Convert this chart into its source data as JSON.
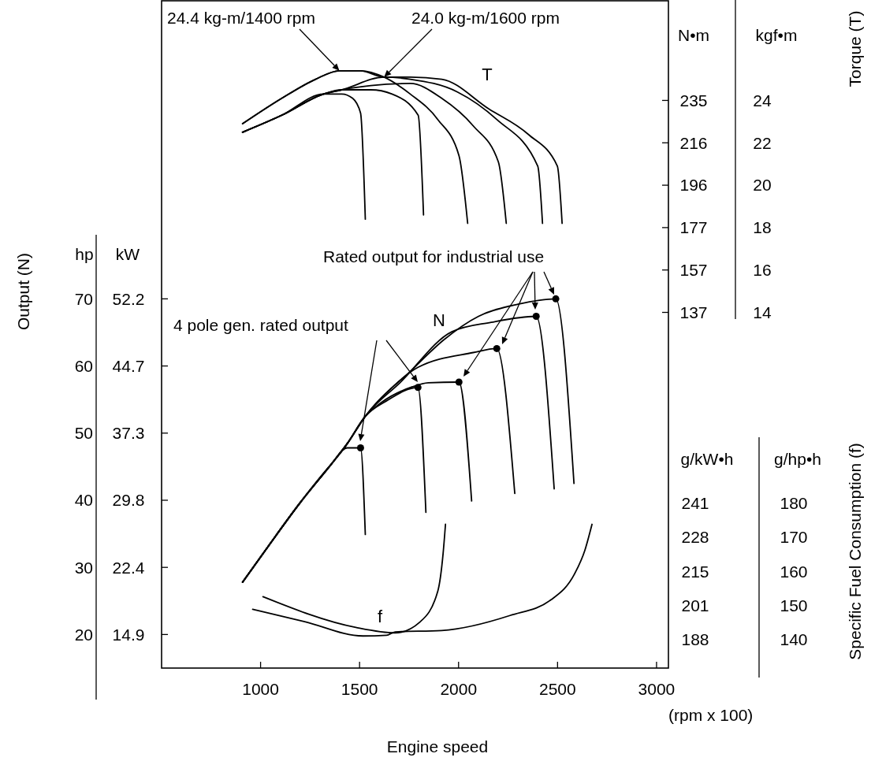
{
  "chart_data": {
    "type": "line",
    "xlabel": "Engine speed",
    "ylabel": "Torque (T)",
    "y2label": "Output (N)",
    "y3label": "Specific Fuel Consumption (f)",
    "xlim": [
      500,
      3060
    ],
    "xticks": [
      1000,
      1500,
      2000,
      2500,
      3000
    ],
    "ylim": [
      -2.78,
      28.7
    ],
    "yticks": [
      24,
      22,
      20,
      18,
      16,
      14
    ],
    "y2lim": [
      15,
      114.4
    ],
    "y2ticks": [
      70,
      60,
      50,
      40,
      30,
      20
    ],
    "y3lim": [
      131.7,
      327.1
    ],
    "y3ticks": [
      180,
      170,
      160,
      150,
      140
    ],
    "series": [
      {
        "color": "#000000",
        "x": [
          909,
          1107,
          1318,
          1410,
          1465,
          1505,
          1529
        ],
        "values": [
          22.5,
          23.3,
          24.3,
          24.3,
          24.1,
          23.4,
          18.4
        ]
      },
      {
        "color": "#000000",
        "x": [
          909,
          1107,
          1318,
          1410,
          1557,
          1664,
          1796,
          1823
        ],
        "values": [
          22.5,
          23.3,
          24.3,
          24.5,
          24.5,
          24.3,
          23.3,
          18.6
        ]
      },
      {
        "color": "#000000",
        "x": [
          909,
          1107,
          1278,
          1398,
          1505,
          1624,
          1756,
          1895,
          2002,
          2046
        ],
        "values": [
          22.9,
          24.1,
          25.0,
          25.4,
          25.4,
          25.1,
          24.3,
          23.1,
          21.4,
          18.2
        ]
      },
      {
        "color": "#000000",
        "x": [
          909,
          1107,
          1318,
          1410,
          1557,
          1756,
          1915,
          2074,
          2201,
          2241
        ],
        "values": [
          22.5,
          23.3,
          24.3,
          24.5,
          24.7,
          24.8,
          24.1,
          22.8,
          21.1,
          18.2
        ]
      },
      {
        "color": "#000000",
        "x": [
          909,
          1107,
          1318,
          1410,
          1624,
          1756,
          1994,
          2193,
          2400,
          2424
        ],
        "values": [
          22.5,
          23.3,
          24.3,
          24.5,
          25.1,
          25.0,
          24.4,
          23.1,
          20.9,
          18.2
        ]
      },
      {
        "name": "T",
        "color": "#000000",
        "x": [
          909,
          1107,
          1278,
          1398,
          1505,
          1624,
          1756,
          1915,
          2153,
          2352,
          2499,
          2523
        ],
        "values": [
          22.9,
          24.1,
          25.0,
          25.4,
          25.4,
          25.1,
          25.1,
          25.0,
          23.6,
          22.4,
          20.9,
          18.2
        ]
      },
      {
        "axis": "y2",
        "color": "#000000",
        "x": [
          909,
          1040,
          1199,
          1358,
          1437,
          1505,
          1529
        ],
        "values": [
          27.8,
          33.2,
          39.6,
          45.4,
          47.8,
          47.8,
          34.9
        ]
      },
      {
        "axis": "y2",
        "color": "#000000",
        "x": [
          909,
          1040,
          1199,
          1358,
          1437,
          1529,
          1636,
          1795,
          1835
        ],
        "values": [
          27.8,
          33.2,
          39.6,
          45.4,
          48.4,
          52.5,
          54.8,
          56.8,
          38.2
        ]
      },
      {
        "axis": "y2",
        "color": "#000000",
        "x": [
          909,
          1040,
          1199,
          1358,
          1437,
          1529,
          1585,
          1767,
          1847,
          2002,
          2066
        ],
        "values": [
          27.8,
          33.2,
          39.6,
          45.4,
          48.4,
          52.5,
          54.0,
          56.9,
          57.5,
          57.6,
          39.9
        ]
      },
      {
        "axis": "y2",
        "color": "#000000",
        "x": [
          909,
          1040,
          1199,
          1358,
          1437,
          1529,
          1636,
          1795,
          2074,
          2193,
          2284
        ],
        "values": [
          27.8,
          33.2,
          39.6,
          45.4,
          48.4,
          52.5,
          56.0,
          59.8,
          62.0,
          62.6,
          41.0
        ]
      },
      {
        "axis": "y2",
        "color": "#000000",
        "x": [
          909,
          1040,
          1199,
          1358,
          1437,
          1529,
          1704,
          1966,
          2165,
          2392,
          2483
        ],
        "values": [
          27.8,
          33.2,
          39.6,
          45.4,
          48.4,
          52.5,
          57.5,
          65.1,
          66.5,
          67.4,
          41.7
        ]
      },
      {
        "axis": "y2",
        "name": "N",
        "color": "#000000",
        "x": [
          909,
          1040,
          1199,
          1358,
          1437,
          1529,
          1767,
          1926,
          2101,
          2300,
          2491,
          2583
        ],
        "values": [
          27.8,
          33.2,
          39.6,
          45.4,
          48.4,
          52.5,
          59.5,
          63.9,
          67.4,
          69.2,
          70.0,
          42.5
        ]
      },
      {
        "axis": "y2",
        "type": "scatter",
        "marker": "circle",
        "color": "#000000",
        "x": [
          1505,
          1795,
          2002,
          2193,
          2392,
          2491
        ],
        "values": [
          47.8,
          56.8,
          57.6,
          62.6,
          67.4,
          70.0
        ]
      },
      {
        "axis": "y3",
        "name": "f",
        "color": "#000000",
        "x": [
          1012,
          1481,
          1680,
          1807,
          1895,
          1922,
          1934
        ],
        "values": [
          152.6,
          143.6,
          142.0,
          145.3,
          154.2,
          165.3,
          173.8
        ]
      },
      {
        "axis": "y3",
        "color": "#000000",
        "x": [
          960,
          1223,
          1517,
          1636,
          1680,
          1915,
          2260,
          2467,
          2586,
          2638,
          2674
        ],
        "values": [
          148.9,
          145.3,
          141.1,
          141.3,
          142.3,
          142.7,
          147.1,
          151.7,
          159.3,
          166.2,
          173.8
        ]
      }
    ],
    "annotations": [
      {
        "text": "24.4 kg-m/1400 rpm",
        "x": 1398,
        "y": 25.4
      },
      {
        "text": "24.0 kg-m/1600 rpm",
        "x": 1624,
        "y": 25.1
      },
      "Rated output for industrial use",
      "4 pole gen. rated output",
      "(rpm x 100)",
      "hp",
      "kW",
      "N•m",
      "kgf•m",
      "g/kW•h",
      "g/hp•h",
      "52.2",
      "44.7",
      "37.3",
      "29.8",
      "22.4",
      "14.9",
      "235",
      "216",
      "196",
      "177",
      "157",
      "137",
      "241",
      "228",
      "215",
      "201",
      "188"
    ]
  }
}
